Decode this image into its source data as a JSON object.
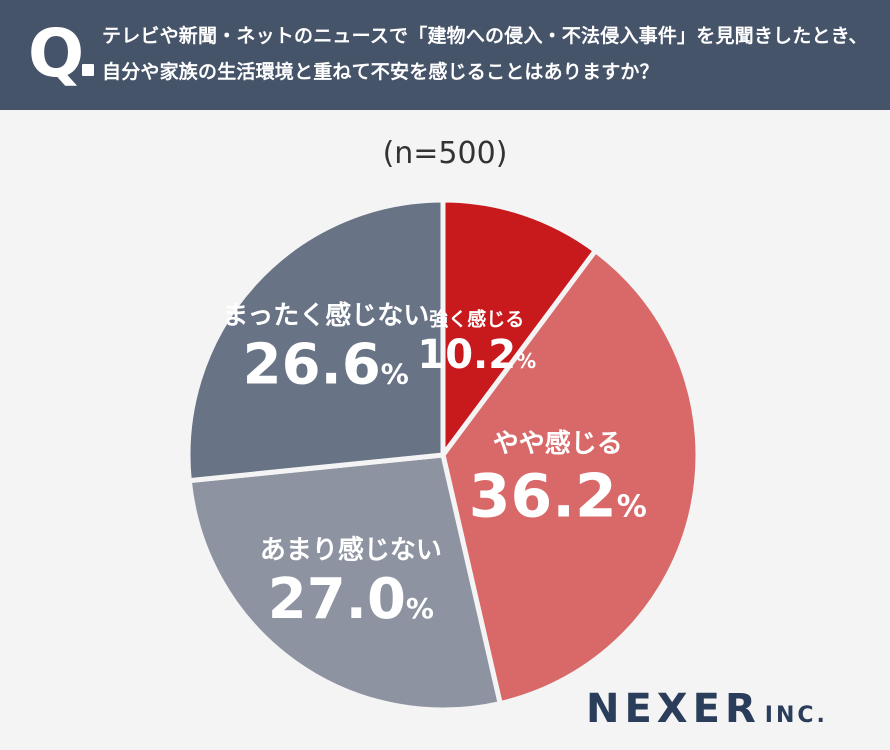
{
  "header": {
    "q_letter": "Q",
    "question": "テレビや新聞・ネットのニュースで「建物への侵入・不法侵入事件」を見聞きしたとき、自分や家族の生活環境と重ねて不安を感じることはありますか？"
  },
  "sample": "(n=500)",
  "logo": {
    "name": "NEXER",
    "suffix": "INC."
  },
  "chart_data": {
    "type": "pie",
    "start": "12 o'clock, clockwise",
    "unit": "%",
    "slices": [
      {
        "label": "強く感じる",
        "value": 10.2,
        "color": "#c8191d"
      },
      {
        "label": "やや感じる",
        "value": 36.2,
        "color": "#d96868"
      },
      {
        "label": "あまり感じない",
        "value": 27.0,
        "color": "#8d93a0"
      },
      {
        "label": "まったく感じない",
        "value": 26.6,
        "color": "#687385"
      }
    ]
  }
}
